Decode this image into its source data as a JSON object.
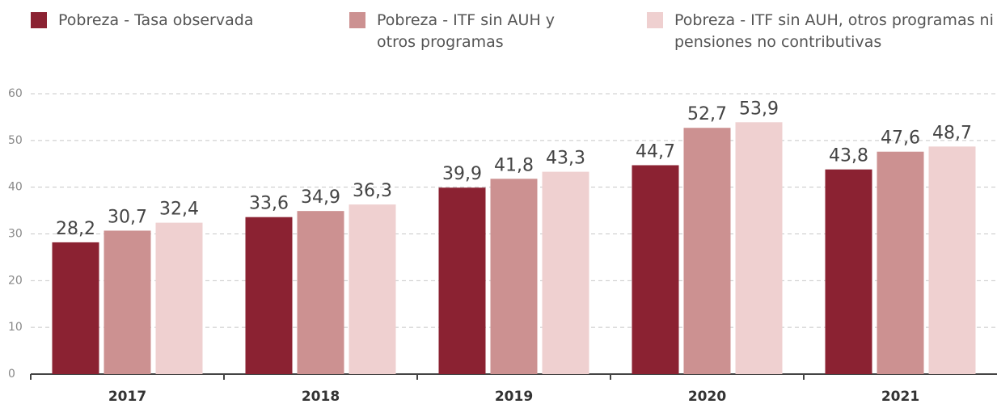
{
  "chart_data": {
    "type": "bar",
    "categories": [
      "2017",
      "2018",
      "2019",
      "2020",
      "2021"
    ],
    "series": [
      {
        "name": "Pobreza - Tasa observada",
        "color": "#8b2232",
        "values": [
          28.2,
          33.6,
          39.9,
          44.7,
          43.8
        ],
        "value_labels": [
          "28,2",
          "33,6",
          "39,9",
          "44,7",
          "43,8"
        ]
      },
      {
        "name": "Pobreza - ITF sin AUH y otros programas",
        "color": "#cc9191",
        "values": [
          30.7,
          34.9,
          41.8,
          52.7,
          47.6
        ],
        "value_labels": [
          "30,7",
          "34,9",
          "41,8",
          "52,7",
          "47,6"
        ]
      },
      {
        "name": "Pobreza - ITF sin AUH, otros programas ni pensiones no contributivas",
        "color": "#efd0d0",
        "values": [
          32.4,
          36.3,
          43.3,
          53.9,
          48.7
        ],
        "value_labels": [
          "32,4",
          "36,3",
          "43,3",
          "53,9",
          "48,7"
        ]
      }
    ],
    "ylim": [
      0,
      60
    ],
    "yticks": [
      0,
      10,
      20,
      30,
      40,
      50,
      60
    ],
    "grid": true,
    "legend": "top"
  }
}
